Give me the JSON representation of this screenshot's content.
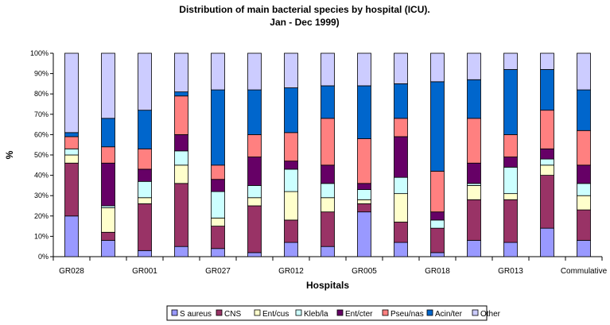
{
  "chart_data": {
    "type": "bar",
    "stacked": true,
    "percent": true,
    "title": "Distribution of main bacterial species by hospital (ICU).",
    "subtitle": "Jan - Dec 1999)",
    "xlabel": "Hospitals",
    "ylabel": "%",
    "ylim": [
      0,
      100
    ],
    "y_ticks": [
      "0%",
      "10%",
      "20%",
      "30%",
      "40%",
      "50%",
      "60%",
      "70%",
      "80%",
      "90%",
      "100%"
    ],
    "grid": false,
    "legend_position": "bottom",
    "categories": [
      "GR028",
      "",
      "GR001",
      "",
      "GR027",
      "",
      "GR012",
      "",
      "GR005",
      "",
      "GR018",
      "",
      "GR013",
      "",
      "Commulative"
    ],
    "series": [
      {
        "name": "S aureus",
        "color": "#9999ff",
        "values": [
          20,
          8,
          3,
          5,
          4,
          2,
          7,
          5,
          22,
          7,
          2,
          8,
          7,
          14,
          8
        ]
      },
      {
        "name": "CNS",
        "color": "#993366",
        "values": [
          26,
          4,
          23,
          31,
          11,
          23,
          11,
          17,
          4,
          10,
          12,
          20,
          21,
          26,
          15
        ]
      },
      {
        "name": "Ent/cus",
        "color": "#ffffcc",
        "values": [
          4,
          12,
          3,
          9,
          4,
          4,
          14,
          7,
          2,
          14,
          0,
          7,
          3,
          5,
          7
        ]
      },
      {
        "name": "Kleb/la",
        "color": "#ccffff",
        "values": [
          3,
          1,
          8,
          7,
          13,
          6,
          11,
          7,
          5,
          8,
          4,
          1,
          13,
          3,
          6
        ]
      },
      {
        "name": "Ent/cter",
        "color": "#660066",
        "values": [
          0,
          21,
          6,
          8,
          6,
          14,
          4,
          9,
          3,
          20,
          4,
          10,
          5,
          5,
          9
        ]
      },
      {
        "name": "Pseu/nas",
        "color": "#ff8080",
        "values": [
          6,
          8,
          10,
          19,
          7,
          11,
          14,
          23,
          22,
          9,
          20,
          22,
          11,
          19,
          17
        ]
      },
      {
        "name": "Acin/ter",
        "color": "#0066cc",
        "values": [
          2,
          14,
          19,
          2,
          37,
          22,
          22,
          16,
          26,
          17,
          44,
          19,
          32,
          20,
          20
        ]
      },
      {
        "name": "Other",
        "color": "#ccccff",
        "values": [
          39,
          32,
          28,
          19,
          18,
          18,
          17,
          16,
          16,
          15,
          14,
          13,
          8,
          8,
          18
        ]
      }
    ]
  }
}
